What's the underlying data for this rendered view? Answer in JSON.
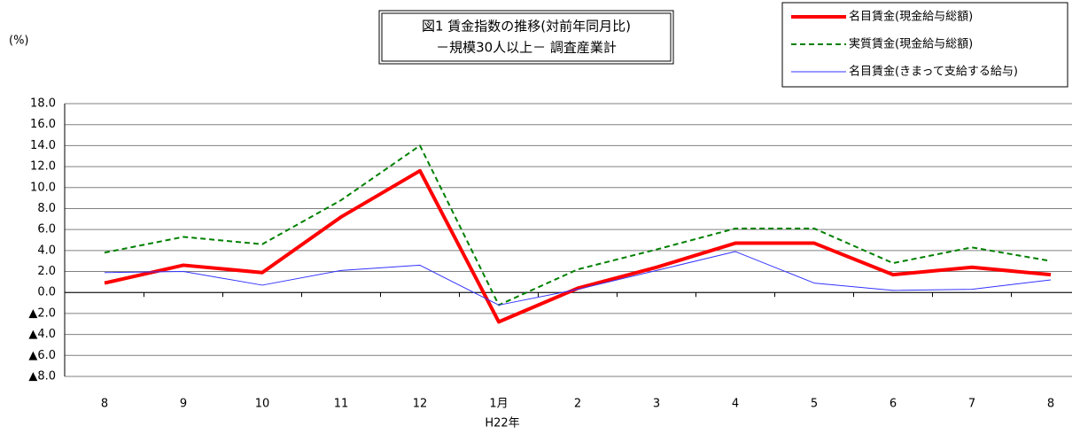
{
  "chart_data": {
    "type": "line",
    "title": [
      "図1 賃金指数の推移(対前年同月比)",
      "－規模30人以上－ 調査産業計"
    ],
    "y_label": "(%)",
    "x_note": "H22年",
    "categories": [
      "8",
      "9",
      "10",
      "11",
      "12",
      "1月",
      "2",
      "3",
      "4",
      "5",
      "6",
      "7",
      "8"
    ],
    "series": [
      {
        "name": "名目賃金(現金給与総額)",
        "color": "#ff0000",
        "line_width": 4,
        "dashed": false,
        "values": [
          0.9,
          2.6,
          1.9,
          7.2,
          11.6,
          -2.8,
          0.4,
          2.4,
          4.7,
          4.7,
          1.7,
          2.4,
          1.7
        ]
      },
      {
        "name": "実質賃金(現金給与総額)",
        "color": "#008000",
        "line_width": 2,
        "dashed": true,
        "values": [
          3.8,
          5.3,
          4.6,
          8.8,
          14.0,
          -1.2,
          2.2,
          4.1,
          6.1,
          6.1,
          2.8,
          4.3,
          3.0
        ]
      },
      {
        "name": "名目賃金(きまって支給する給与)",
        "color": "#3333ff",
        "line_width": 1,
        "dashed": false,
        "values": [
          1.9,
          2.0,
          0.7,
          2.1,
          2.6,
          -1.2,
          0.3,
          2.1,
          3.9,
          0.9,
          0.2,
          0.3,
          1.2
        ]
      }
    ],
    "ylim": [
      -8,
      18
    ],
    "yticks": [
      {
        "value": 18,
        "label": "18.0"
      },
      {
        "value": 16,
        "label": "16.0"
      },
      {
        "value": 14,
        "label": "14.0"
      },
      {
        "value": 12,
        "label": "12.0"
      },
      {
        "value": 10,
        "label": "10.0"
      },
      {
        "value": 8,
        "label": "8.0"
      },
      {
        "value": 6,
        "label": "6.0"
      },
      {
        "value": 4,
        "label": "4.0"
      },
      {
        "value": 2,
        "label": "2.0"
      },
      {
        "value": 0,
        "label": "0.0"
      },
      {
        "value": -2,
        "label": "▲2.0"
      },
      {
        "value": -4,
        "label": "▲4.0"
      },
      {
        "value": -6,
        "label": "▲6.0"
      },
      {
        "value": -8,
        "label": "▲8.0"
      }
    ],
    "grid": true
  }
}
